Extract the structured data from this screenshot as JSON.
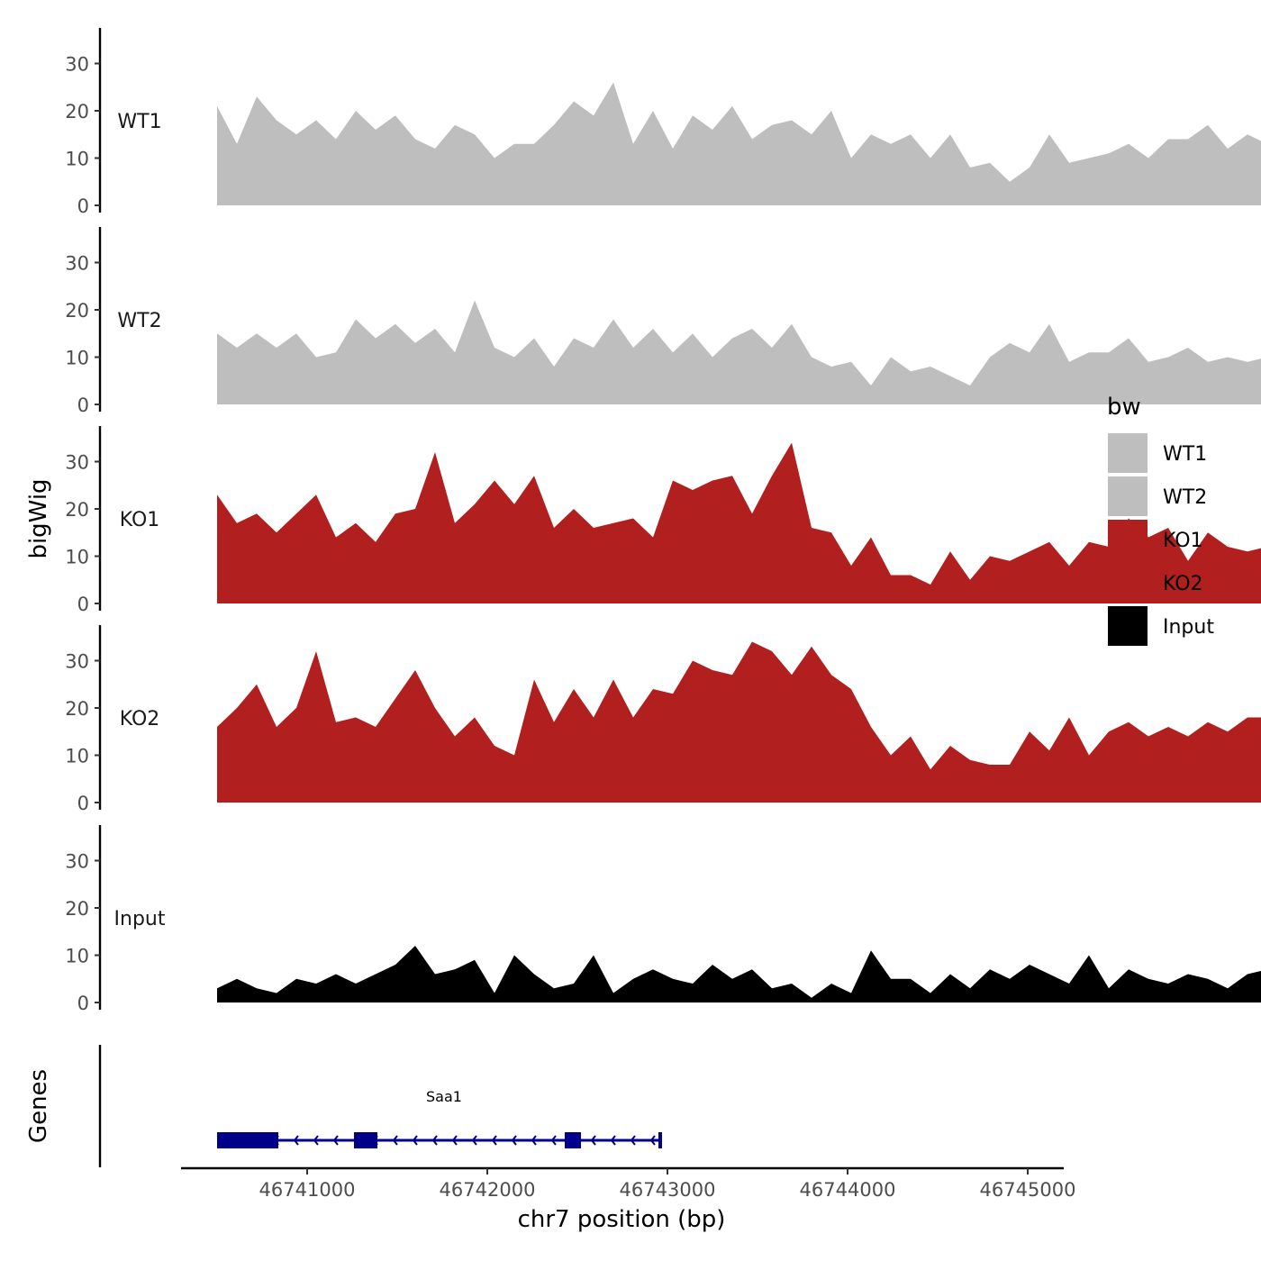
{
  "chart_data": {
    "type": "area",
    "y_axis_title": "bigWig",
    "x_axis_title": "chr7 position (bp)",
    "xlim": [
      46740300,
      46745200
    ],
    "x_ticks": [
      46741000,
      46742000,
      46743000,
      46744000,
      46745000
    ],
    "x_tick_labels": [
      "46741000",
      "46742000",
      "46743000",
      "46744000",
      "46745000"
    ],
    "ylim": [
      0,
      38
    ],
    "y_ticks": [
      0,
      10,
      20,
      30
    ],
    "y_tick_labels": [
      "0",
      "10",
      "20",
      "30"
    ],
    "x_start": 46740500,
    "x_step": 110,
    "legend": {
      "title": "bw",
      "placement": "right",
      "entries": [
        {
          "label": "WT1",
          "color": "#bebebe"
        },
        {
          "label": "WT2",
          "color": "#bebebe"
        },
        {
          "label": "KO1",
          "color": "#b21f1f"
        },
        {
          "label": "KO2",
          "color": "#b21f1f"
        },
        {
          "label": "Input",
          "color": "#000000"
        }
      ]
    },
    "series": [
      {
        "name": "WT1",
        "color": "#bebebe",
        "values": [
          21,
          13,
          23,
          18,
          15,
          18,
          14,
          20,
          16,
          19,
          14,
          12,
          17,
          15,
          10,
          13,
          13,
          17,
          22,
          19,
          26,
          13,
          20,
          12,
          19,
          16,
          21,
          14,
          17,
          18,
          15,
          20,
          10,
          15,
          13,
          15,
          10,
          15,
          8,
          9,
          5,
          8,
          15,
          9,
          10,
          11,
          13,
          10,
          14,
          14,
          17,
          12,
          15,
          13
        ]
      },
      {
        "name": "WT2",
        "color": "#bebebe",
        "values": [
          15,
          12,
          15,
          12,
          15,
          10,
          11,
          18,
          14,
          17,
          13,
          16,
          11,
          22,
          12,
          10,
          14,
          8,
          14,
          12,
          18,
          12,
          16,
          11,
          15,
          10,
          14,
          16,
          12,
          17,
          10,
          8,
          9,
          4,
          10,
          7,
          8,
          6,
          4,
          10,
          13,
          11,
          17,
          9,
          11,
          11,
          14,
          9,
          10,
          12,
          9,
          10,
          9,
          10
        ]
      },
      {
        "name": "KO1",
        "color": "#b21f1f",
        "values": [
          23,
          17,
          19,
          15,
          19,
          23,
          14,
          17,
          13,
          19,
          20,
          32,
          17,
          21,
          26,
          21,
          27,
          16,
          20,
          16,
          17,
          18,
          14,
          26,
          24,
          26,
          27,
          19,
          27,
          34,
          16,
          15,
          8,
          14,
          6,
          6,
          4,
          11,
          5,
          10,
          9,
          11,
          13,
          8,
          13,
          12,
          18,
          14,
          16,
          9,
          15,
          12,
          11,
          12
        ]
      },
      {
        "name": "KO2",
        "color": "#b21f1f",
        "values": [
          16,
          20,
          25,
          16,
          20,
          32,
          17,
          18,
          16,
          22,
          28,
          20,
          14,
          18,
          12,
          10,
          26,
          17,
          24,
          18,
          26,
          18,
          24,
          23,
          30,
          28,
          27,
          34,
          32,
          27,
          33,
          27,
          24,
          16,
          10,
          14,
          7,
          12,
          9,
          8,
          8,
          15,
          11,
          18,
          10,
          15,
          17,
          14,
          16,
          14,
          17,
          15,
          18,
          18
        ]
      },
      {
        "name": "Input",
        "color": "#000000",
        "values": [
          3,
          5,
          3,
          2,
          5,
          4,
          6,
          4,
          6,
          8,
          12,
          6,
          7,
          9,
          2,
          10,
          6,
          3,
          4,
          10,
          2,
          5,
          7,
          5,
          4,
          8,
          5,
          7,
          3,
          4,
          1,
          4,
          2,
          11,
          5,
          5,
          2,
          6,
          3,
          7,
          5,
          8,
          6,
          4,
          10,
          3,
          7,
          5,
          4,
          6,
          5,
          3,
          6,
          7
        ]
      }
    ],
    "genes_track": {
      "label": "Genes",
      "gene_name": "Saa1",
      "color": "#00008b",
      "strand": "-",
      "start": 46740500,
      "end": 46742970,
      "exons": [
        [
          46740500,
          46740840
        ],
        [
          46741260,
          46741390
        ],
        [
          46742430,
          46742520
        ],
        [
          46742950,
          46742970
        ]
      ]
    }
  }
}
